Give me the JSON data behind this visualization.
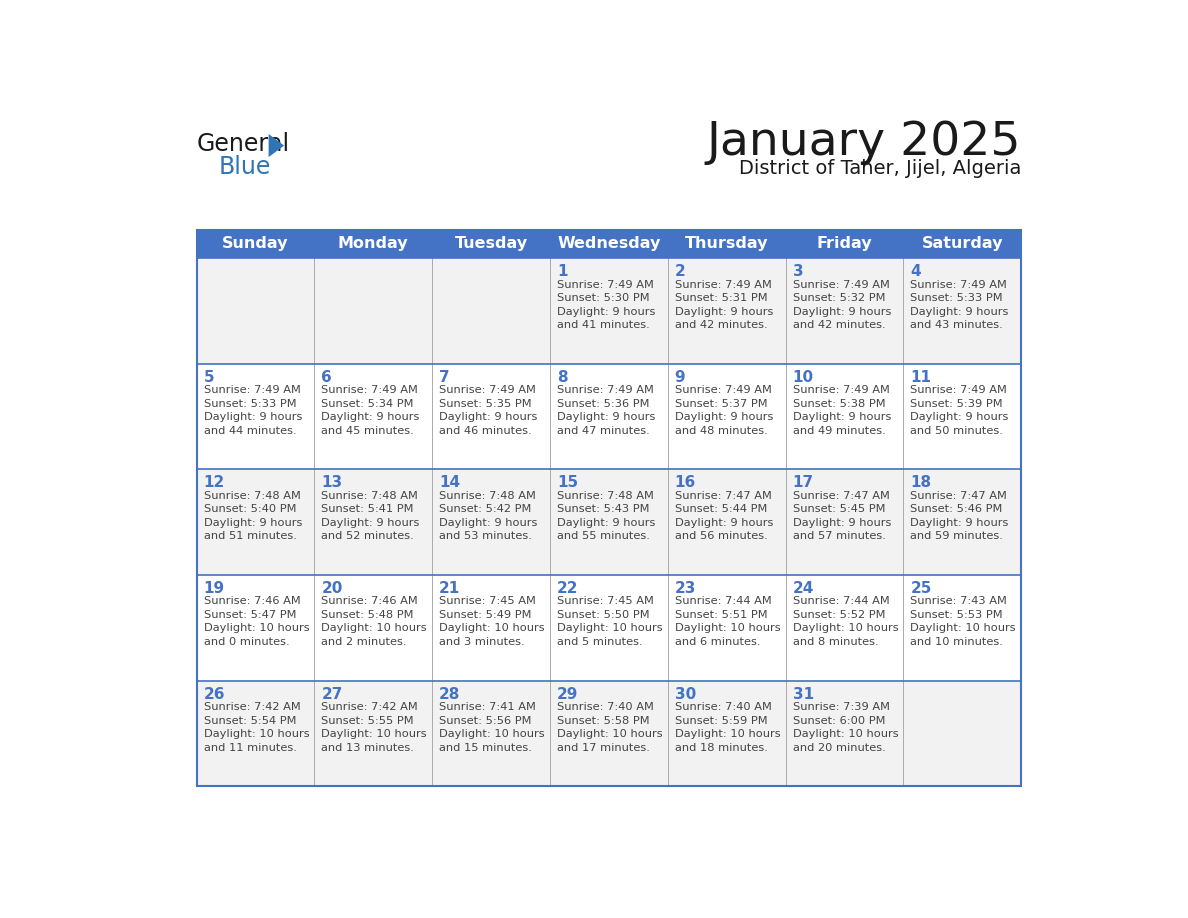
{
  "title": "January 2025",
  "subtitle": "District of Taher, Jijel, Algeria",
  "days_of_week": [
    "Sunday",
    "Monday",
    "Tuesday",
    "Wednesday",
    "Thursday",
    "Friday",
    "Saturday"
  ],
  "header_bg": "#4472C4",
  "header_text_color": "#FFFFFF",
  "cell_bg_odd": "#F2F2F2",
  "cell_bg_even": "#FFFFFF",
  "border_color": "#4472C4",
  "row_line_color": "#4472C4",
  "col_line_color": "#AAAAAA",
  "day_number_color": "#4472C4",
  "text_color": "#444444",
  "calendar": [
    [
      null,
      null,
      null,
      {
        "day": 1,
        "sunrise": "7:49 AM",
        "sunset": "5:30 PM",
        "daylight": "9 hours and 41 minutes."
      },
      {
        "day": 2,
        "sunrise": "7:49 AM",
        "sunset": "5:31 PM",
        "daylight": "9 hours and 42 minutes."
      },
      {
        "day": 3,
        "sunrise": "7:49 AM",
        "sunset": "5:32 PM",
        "daylight": "9 hours and 42 minutes."
      },
      {
        "day": 4,
        "sunrise": "7:49 AM",
        "sunset": "5:33 PM",
        "daylight": "9 hours and 43 minutes."
      }
    ],
    [
      {
        "day": 5,
        "sunrise": "7:49 AM",
        "sunset": "5:33 PM",
        "daylight": "9 hours and 44 minutes."
      },
      {
        "day": 6,
        "sunrise": "7:49 AM",
        "sunset": "5:34 PM",
        "daylight": "9 hours and 45 minutes."
      },
      {
        "day": 7,
        "sunrise": "7:49 AM",
        "sunset": "5:35 PM",
        "daylight": "9 hours and 46 minutes."
      },
      {
        "day": 8,
        "sunrise": "7:49 AM",
        "sunset": "5:36 PM",
        "daylight": "9 hours and 47 minutes."
      },
      {
        "day": 9,
        "sunrise": "7:49 AM",
        "sunset": "5:37 PM",
        "daylight": "9 hours and 48 minutes."
      },
      {
        "day": 10,
        "sunrise": "7:49 AM",
        "sunset": "5:38 PM",
        "daylight": "9 hours and 49 minutes."
      },
      {
        "day": 11,
        "sunrise": "7:49 AM",
        "sunset": "5:39 PM",
        "daylight": "9 hours and 50 minutes."
      }
    ],
    [
      {
        "day": 12,
        "sunrise": "7:48 AM",
        "sunset": "5:40 PM",
        "daylight": "9 hours and 51 minutes."
      },
      {
        "day": 13,
        "sunrise": "7:48 AM",
        "sunset": "5:41 PM",
        "daylight": "9 hours and 52 minutes."
      },
      {
        "day": 14,
        "sunrise": "7:48 AM",
        "sunset": "5:42 PM",
        "daylight": "9 hours and 53 minutes."
      },
      {
        "day": 15,
        "sunrise": "7:48 AM",
        "sunset": "5:43 PM",
        "daylight": "9 hours and 55 minutes."
      },
      {
        "day": 16,
        "sunrise": "7:47 AM",
        "sunset": "5:44 PM",
        "daylight": "9 hours and 56 minutes."
      },
      {
        "day": 17,
        "sunrise": "7:47 AM",
        "sunset": "5:45 PM",
        "daylight": "9 hours and 57 minutes."
      },
      {
        "day": 18,
        "sunrise": "7:47 AM",
        "sunset": "5:46 PM",
        "daylight": "9 hours and 59 minutes."
      }
    ],
    [
      {
        "day": 19,
        "sunrise": "7:46 AM",
        "sunset": "5:47 PM",
        "daylight": "10 hours and 0 minutes."
      },
      {
        "day": 20,
        "sunrise": "7:46 AM",
        "sunset": "5:48 PM",
        "daylight": "10 hours and 2 minutes."
      },
      {
        "day": 21,
        "sunrise": "7:45 AM",
        "sunset": "5:49 PM",
        "daylight": "10 hours and 3 minutes."
      },
      {
        "day": 22,
        "sunrise": "7:45 AM",
        "sunset": "5:50 PM",
        "daylight": "10 hours and 5 minutes."
      },
      {
        "day": 23,
        "sunrise": "7:44 AM",
        "sunset": "5:51 PM",
        "daylight": "10 hours and 6 minutes."
      },
      {
        "day": 24,
        "sunrise": "7:44 AM",
        "sunset": "5:52 PM",
        "daylight": "10 hours and 8 minutes."
      },
      {
        "day": 25,
        "sunrise": "7:43 AM",
        "sunset": "5:53 PM",
        "daylight": "10 hours and 10 minutes."
      }
    ],
    [
      {
        "day": 26,
        "sunrise": "7:42 AM",
        "sunset": "5:54 PM",
        "daylight": "10 hours and 11 minutes."
      },
      {
        "day": 27,
        "sunrise": "7:42 AM",
        "sunset": "5:55 PM",
        "daylight": "10 hours and 13 minutes."
      },
      {
        "day": 28,
        "sunrise": "7:41 AM",
        "sunset": "5:56 PM",
        "daylight": "10 hours and 15 minutes."
      },
      {
        "day": 29,
        "sunrise": "7:40 AM",
        "sunset": "5:58 PM",
        "daylight": "10 hours and 17 minutes."
      },
      {
        "day": 30,
        "sunrise": "7:40 AM",
        "sunset": "5:59 PM",
        "daylight": "10 hours and 18 minutes."
      },
      {
        "day": 31,
        "sunrise": "7:39 AM",
        "sunset": "6:00 PM",
        "daylight": "10 hours and 20 minutes."
      },
      null
    ]
  ],
  "logo_triangle_color": "#2E75B6",
  "logo_blue_color": "#2E75B6",
  "logo_black_color": "#1a1a1a"
}
